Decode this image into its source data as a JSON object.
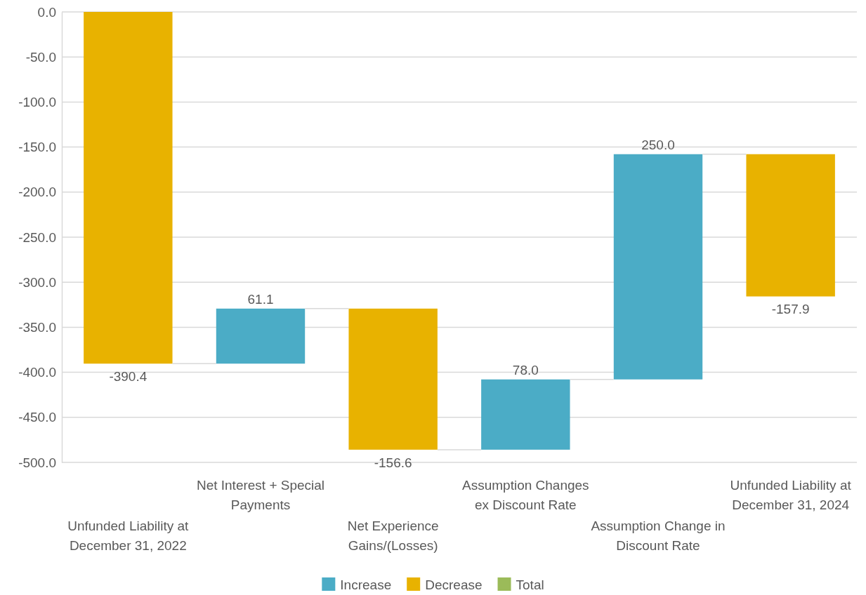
{
  "chart_data": {
    "type": "bar",
    "categories": [
      "Unfunded Liability at December 31, 2022",
      "Net Interest + Special Payments",
      "Net Experience Gains/(Losses)",
      "Assumption Changes ex Discount Rate",
      "Assumption Change in Discount Rate",
      "Unfunded Liability at December 31, 2024"
    ],
    "series": [
      {
        "name": "Increase",
        "color": "#4bacc6",
        "base": [
          null,
          -390.4,
          null,
          -485.9,
          -407.9,
          null
        ],
        "values": [
          null,
          61.1,
          null,
          78.0,
          250.0,
          null
        ],
        "value_labels": [
          null,
          "61.1",
          null,
          "78.0",
          "250.0",
          null
        ]
      },
      {
        "name": "Decrease",
        "color": "#e8b200",
        "base": [
          0,
          null,
          -329.3,
          null,
          null,
          -157.9
        ],
        "values": [
          -390.4,
          null,
          -156.6,
          null,
          null,
          -157.9
        ],
        "value_labels": [
          "-390.4",
          null,
          "-156.6",
          null,
          null,
          "-157.9"
        ]
      },
      {
        "name": "Total",
        "color": "#9bbb59",
        "values": [
          null,
          null,
          null,
          null,
          null,
          null
        ]
      }
    ],
    "ylim": [
      -500,
      0
    ],
    "yticks": [
      {
        "value": 0,
        "label": "0.0"
      },
      {
        "value": -50,
        "label": "-50.0"
      },
      {
        "value": -100,
        "label": "-100.0"
      },
      {
        "value": -150,
        "label": "-150.0"
      },
      {
        "value": -200,
        "label": "-200.0"
      },
      {
        "value": -250,
        "label": "-250.0"
      },
      {
        "value": -300,
        "label": "-300.0"
      },
      {
        "value": -350,
        "label": "-350.0"
      },
      {
        "value": -400,
        "label": "-400.0"
      },
      {
        "value": -450,
        "label": "-450.0"
      },
      {
        "value": -500,
        "label": "-500.0"
      }
    ],
    "grid": "y",
    "legend": "bottom"
  }
}
